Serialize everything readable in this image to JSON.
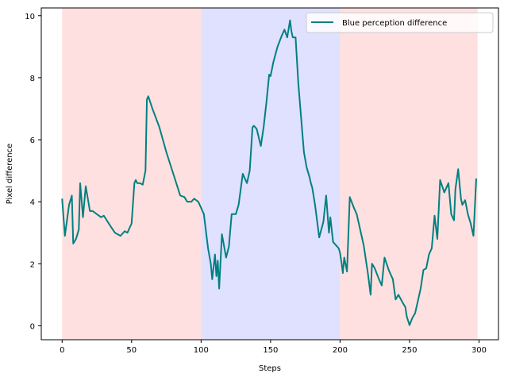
{
  "chart_data": {
    "type": "line",
    "title": "",
    "xlabel": "Steps",
    "ylabel": "Pixel difference",
    "xlim": [
      -15,
      314
    ],
    "ylim": [
      -0.45,
      10.25
    ],
    "xticks": [
      0,
      50,
      100,
      150,
      200,
      250,
      300
    ],
    "yticks": [
      0,
      2,
      4,
      6,
      8,
      10
    ],
    "grid": false,
    "legend": "top-right",
    "shaded_regions": [
      {
        "x": [
          0,
          100
        ],
        "color": "#ffe0e0"
      },
      {
        "x": [
          100,
          200
        ],
        "color": "#e0e0ff"
      },
      {
        "x": [
          200,
          299
        ],
        "color": "#ffe0e0"
      }
    ],
    "series": [
      {
        "name": "Blue perception difference",
        "color": "#008080",
        "x": [
          0,
          2,
          5,
          7,
          8,
          10,
          12,
          13,
          15,
          17,
          20,
          22,
          25,
          28,
          30,
          35,
          38,
          42,
          45,
          47,
          50,
          52,
          53,
          54,
          56,
          58,
          60,
          61,
          62,
          65,
          70,
          75,
          80,
          85,
          88,
          90,
          93,
          95,
          98,
          100,
          102,
          105,
          107,
          108,
          110,
          111,
          112,
          113,
          115,
          118,
          120,
          122,
          125,
          127,
          130,
          133,
          135,
          137,
          138,
          140,
          143,
          145,
          147,
          149,
          150,
          152,
          155,
          158,
          160,
          162,
          164,
          165,
          166,
          168,
          170,
          172,
          174,
          176,
          178,
          179,
          180,
          182,
          185,
          188,
          190,
          192,
          193,
          195,
          197,
          199,
          200,
          201,
          202,
          203,
          205,
          207,
          210,
          212,
          213,
          215,
          217,
          219,
          220,
          222,
          223,
          225,
          228,
          230,
          232,
          235,
          238,
          240,
          242,
          245,
          247,
          248,
          250,
          252,
          254,
          256,
          258,
          260,
          262,
          264,
          266,
          268,
          270,
          272,
          275,
          278,
          280,
          282,
          283,
          285,
          287,
          288,
          290,
          292,
          294,
          296,
          298
        ],
        "values": [
          4.1,
          2.9,
          3.9,
          4.2,
          2.65,
          2.8,
          3.1,
          4.6,
          3.5,
          4.5,
          3.7,
          3.7,
          3.6,
          3.5,
          3.55,
          3.2,
          3.0,
          2.9,
          3.05,
          3.0,
          3.3,
          4.6,
          4.7,
          4.6,
          4.6,
          4.55,
          5.0,
          7.3,
          7.4,
          7.0,
          6.4,
          5.6,
          4.9,
          4.2,
          4.15,
          4.0,
          4.0,
          4.1,
          4.0,
          3.8,
          3.6,
          2.5,
          2.0,
          1.5,
          2.3,
          1.6,
          2.1,
          1.2,
          2.95,
          2.2,
          2.55,
          3.6,
          3.6,
          3.9,
          4.9,
          4.6,
          5.0,
          6.4,
          6.45,
          6.35,
          5.8,
          6.4,
          7.2,
          8.1,
          8.05,
          8.5,
          9.0,
          9.35,
          9.55,
          9.3,
          9.85,
          9.5,
          9.3,
          9.3,
          7.8,
          6.7,
          5.6,
          5.1,
          4.8,
          4.6,
          4.45,
          3.9,
          2.85,
          3.35,
          4.2,
          3.0,
          3.5,
          2.7,
          2.6,
          2.5,
          2.35,
          2.05,
          1.7,
          2.2,
          1.75,
          4.15,
          3.8,
          3.6,
          3.4,
          3.0,
          2.6,
          2.0,
          1.7,
          1.0,
          2.0,
          1.85,
          1.5,
          1.3,
          2.2,
          1.8,
          1.5,
          0.85,
          1.0,
          0.75,
          0.6,
          0.3,
          0.02,
          0.25,
          0.4,
          0.8,
          1.2,
          1.8,
          1.85,
          2.3,
          2.5,
          3.55,
          2.8,
          4.7,
          4.3,
          4.6,
          3.6,
          3.4,
          4.4,
          5.05,
          4.1,
          3.9,
          4.05,
          3.6,
          3.3,
          2.9,
          4.75
        ]
      }
    ]
  }
}
